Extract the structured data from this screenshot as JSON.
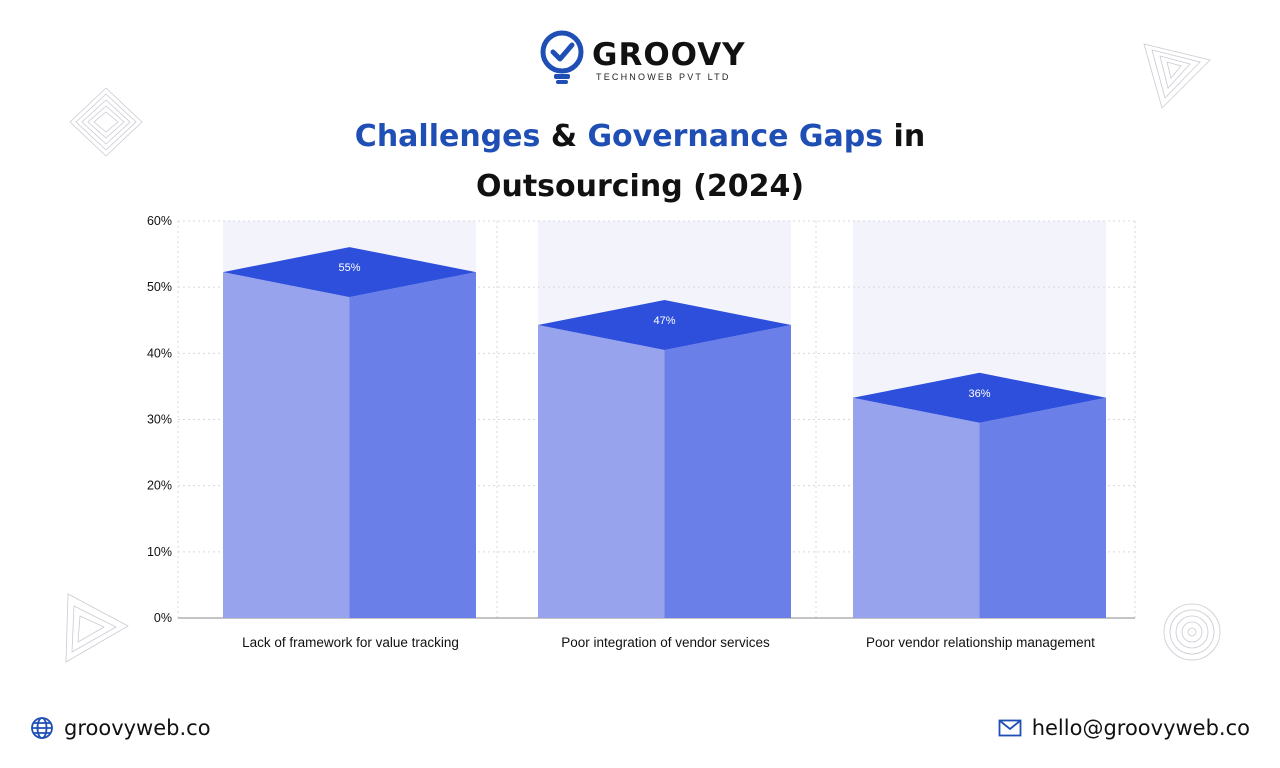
{
  "brand": {
    "name": "GROOVY",
    "tagline": "TECHNOWEB PVT LTD",
    "color": "#1f4fb5"
  },
  "title": {
    "part1": "Challenges",
    "part2": " & ",
    "part3": "Governance Gaps",
    "part4": " in",
    "line2": "Outsourcing (2024)"
  },
  "footer": {
    "website": "groovyweb.co",
    "email": "hello@groovyweb.co",
    "website_icon": "globe-icon",
    "email_icon": "envelope-icon"
  },
  "chart_data": {
    "type": "bar",
    "categories": [
      "Lack of framework for value tracking",
      "Poor integration of vendor services",
      "Poor vendor relationship management"
    ],
    "values": [
      55,
      47,
      36
    ],
    "value_labels": [
      "55%",
      "47%",
      "36%"
    ],
    "y_ticks": [
      "0%",
      "10%",
      "20%",
      "30%",
      "40%",
      "50%",
      "60%"
    ],
    "ylim": [
      0,
      60
    ],
    "grid": true,
    "colors": {
      "front_light": "#98a3ee",
      "front_dark": "#6a80e8",
      "top": "#2d4fdc",
      "band": "#f3f4fb"
    }
  }
}
